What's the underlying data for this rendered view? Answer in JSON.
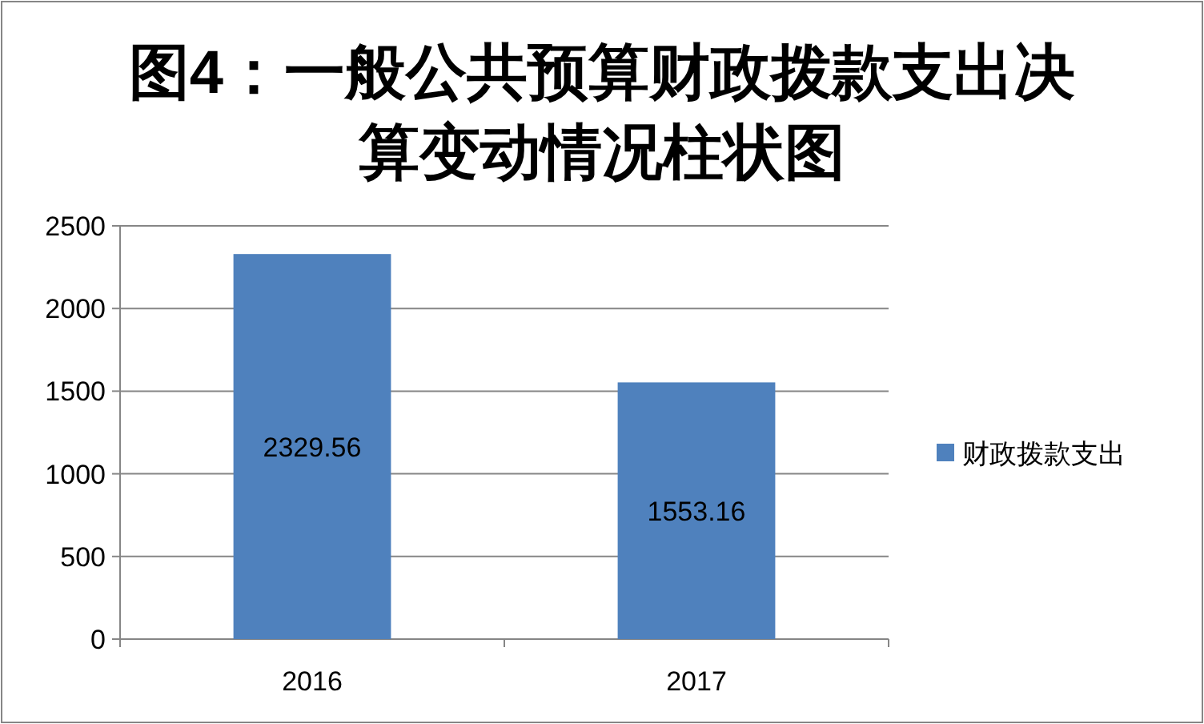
{
  "chart_data": {
    "type": "bar",
    "title": "图4：一般公共预算财政拨款支出决算变动情况柱状图",
    "categories": [
      "2016",
      "2017"
    ],
    "series": [
      {
        "name": "财政拨款支出",
        "color": "#4f81bd",
        "values": [
          2329.56,
          1553.16
        ]
      }
    ],
    "ylim": [
      0,
      2500
    ],
    "yticks": [
      0,
      500,
      1000,
      1500,
      2000,
      2500
    ],
    "grid": "y",
    "legend": "right",
    "data_labels": true
  }
}
